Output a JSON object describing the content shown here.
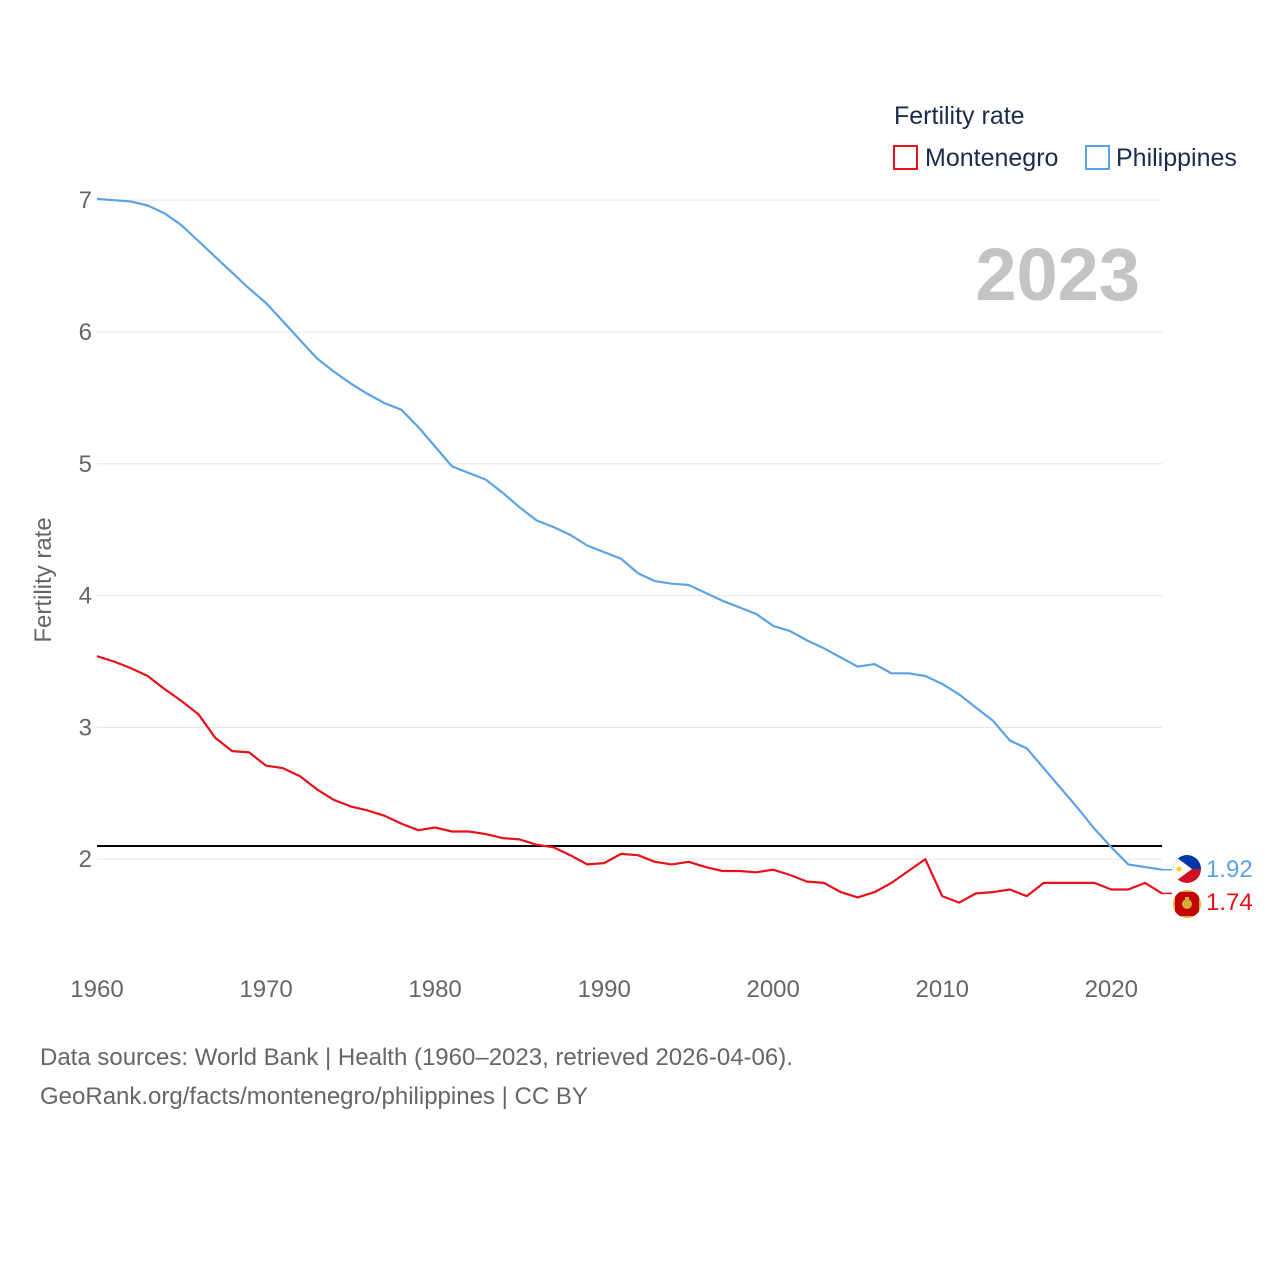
{
  "chart_data": {
    "type": "line",
    "legend_title": "Fertility rate",
    "ylabel": "Fertility rate",
    "xlabel": "",
    "year_label": "2023",
    "x_ticks": [
      "1960",
      "1970",
      "1980",
      "1990",
      "2000",
      "2010",
      "2020"
    ],
    "y_ticks": [
      "2",
      "3",
      "4",
      "5",
      "6",
      "7"
    ],
    "xlim": [
      1960,
      2023
    ],
    "ylim": [
      1.25,
      7.1
    ],
    "grid": true,
    "legend_position": "top-right",
    "reference_line": {
      "value": 2.1,
      "color": "#000000"
    },
    "years_start": 1960,
    "series": [
      {
        "name": "Philippines",
        "color": "#5ba3e6",
        "end_label": "1.92",
        "values": [
          7.01,
          7.0,
          6.99,
          6.96,
          6.9,
          6.81,
          6.69,
          6.57,
          6.45,
          6.33,
          6.22,
          6.08,
          5.94,
          5.8,
          5.7,
          5.61,
          5.53,
          5.46,
          5.41,
          5.28,
          5.13,
          4.98,
          4.93,
          4.88,
          4.78,
          4.67,
          4.57,
          4.52,
          4.46,
          4.38,
          4.33,
          4.28,
          4.17,
          4.11,
          4.09,
          4.08,
          4.02,
          3.96,
          3.91,
          3.86,
          3.77,
          3.73,
          3.66,
          3.6,
          3.53,
          3.46,
          3.48,
          3.41,
          3.41,
          3.39,
          3.33,
          3.25,
          3.15,
          3.05,
          2.9,
          2.84,
          2.69,
          2.54,
          2.39,
          2.23,
          2.09,
          1.96,
          1.94,
          1.92
        ]
      },
      {
        "name": "Montenegro",
        "color": "#e8101a",
        "end_label": "1.74",
        "values": [
          3.54,
          3.5,
          3.45,
          3.39,
          3.29,
          3.2,
          3.1,
          2.92,
          2.82,
          2.81,
          2.71,
          2.69,
          2.63,
          2.53,
          2.45,
          2.4,
          2.37,
          2.33,
          2.27,
          2.22,
          2.24,
          2.21,
          2.21,
          2.19,
          2.16,
          2.15,
          2.11,
          2.09,
          2.03,
          1.96,
          1.97,
          2.04,
          2.03,
          1.98,
          1.96,
          1.98,
          1.94,
          1.91,
          1.91,
          1.9,
          1.92,
          1.88,
          1.83,
          1.82,
          1.75,
          1.71,
          1.75,
          1.82,
          1.91,
          2.0,
          1.72,
          1.67,
          1.74,
          1.75,
          1.77,
          1.72,
          1.82,
          1.82,
          1.82,
          1.82,
          1.77,
          1.77,
          1.82,
          1.74
        ]
      }
    ]
  },
  "source": {
    "line1": "Data sources: World Bank | Health (1960–2023, retrieved 2026-04-06).",
    "line2": "GeoRank.org/facts/montenegro/philippines | CC BY"
  }
}
